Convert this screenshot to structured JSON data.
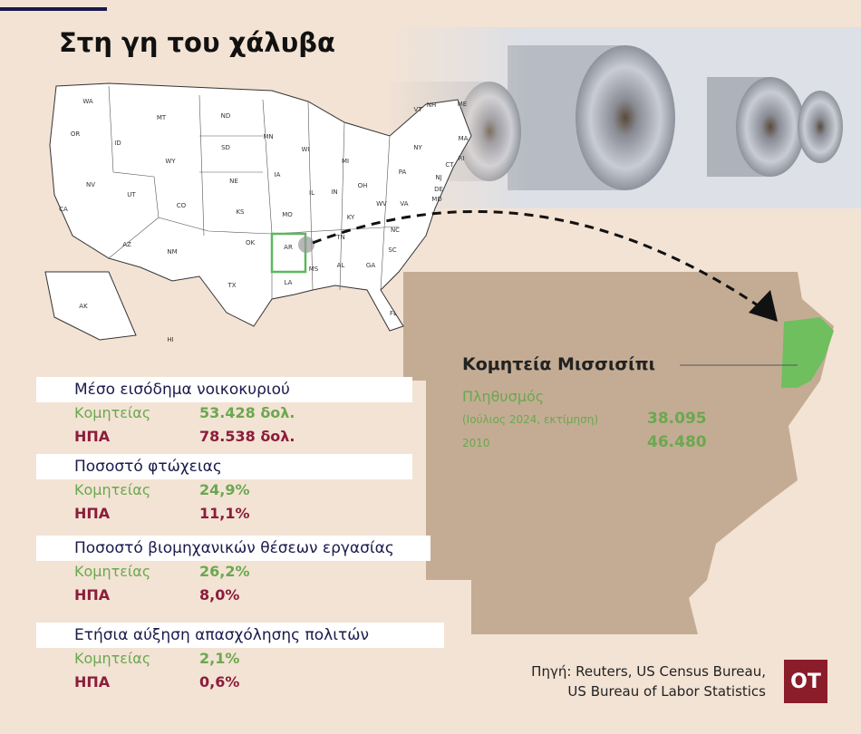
{
  "header": {
    "title": "Στη γη του χάλυβα"
  },
  "map": {
    "states": [
      "WA",
      "OR",
      "ID",
      "MT",
      "ND",
      "SD",
      "WY",
      "NE",
      "MN",
      "WI",
      "MI",
      "IA",
      "IL",
      "IN",
      "OH",
      "PA",
      "NY",
      "VT",
      "NH",
      "ME",
      "MA",
      "RI",
      "CT",
      "NJ",
      "DE",
      "MD",
      "WV",
      "VA",
      "KY",
      "TN",
      "NC",
      "SC",
      "GA",
      "AL",
      "MS",
      "AR",
      "LA",
      "TX",
      "OK",
      "KS",
      "MO",
      "CO",
      "UT",
      "NV",
      "CA",
      "AZ",
      "NM",
      "FL",
      "AK",
      "HI"
    ]
  },
  "county": {
    "name": "Κομητεία Μισσισίπι",
    "population_label": "Πληθυσμός",
    "rows": [
      {
        "label": "(Ιούλιος 2024, εκτίμηση)",
        "value": "38.095"
      },
      {
        "label": "2010",
        "value": "46.480"
      }
    ]
  },
  "stats": [
    {
      "title": "Μέσο εισόδημα νοικοκυριού",
      "county_label": "Κομητείας",
      "county_value": "53.428 δολ.",
      "us_label": "ΗΠΑ",
      "us_value": "78.538 δολ."
    },
    {
      "title": "Ποσοστό φτώχειας",
      "county_label": "Κομητείας",
      "county_value": "24,9%",
      "us_label": "ΗΠΑ",
      "us_value": "11,1%"
    },
    {
      "title": "Ποσοστό βιομηχανικών θέσεων εργασίας",
      "county_label": "Κομητείας",
      "county_value": "26,2%",
      "us_label": "ΗΠΑ",
      "us_value": "8,0%"
    },
    {
      "title": "Ετήσια αύξηση απασχόλησης πολιτών",
      "county_label": "Κομητείας",
      "county_value": "2,1%",
      "us_label": "ΗΠΑ",
      "us_value": "0,6%"
    }
  ],
  "source": {
    "line1": "Πηγή: Reuters, US Census Bureau,",
    "line2": "US Bureau of Labor Statistics"
  },
  "logo": "OT"
}
